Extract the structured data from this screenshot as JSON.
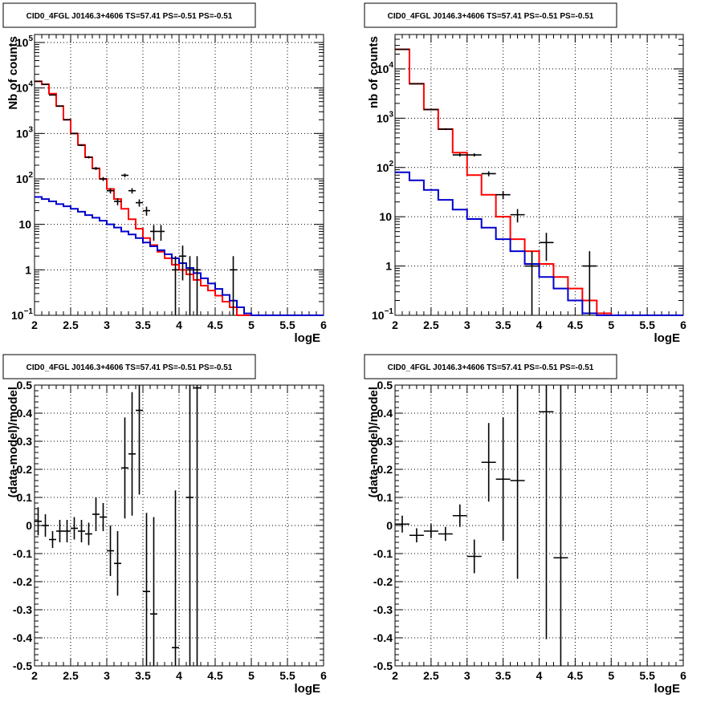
{
  "colors": {
    "data": "#000000",
    "model": "#ff0000",
    "background_model": "#0000cc"
  },
  "chart_data": [
    {
      "type": "line",
      "title": "CID0_4FGL J0146.3+4606 TS=57.41 PS=-0.51 PS=-0.51",
      "xlabel": "logE",
      "ylabel": "Nb of counts",
      "xlim": [
        2,
        6
      ],
      "ylim": [
        0.1,
        150000
      ],
      "yscale": "log",
      "grid": true,
      "x_ticks": [
        "2",
        "2.5",
        "3",
        "3.5",
        "4",
        "4.5",
        "5",
        "5.5",
        "6"
      ],
      "y_ticks": [
        {
          "v": 0.1,
          "label": "10",
          "sup": "−1"
        },
        {
          "v": 1,
          "label": "1"
        },
        {
          "v": 10,
          "label": "10"
        },
        {
          "v": 100,
          "label": "10",
          "sup": "2"
        },
        {
          "v": 1000,
          "label": "10",
          "sup": "3"
        },
        {
          "v": 10000,
          "label": "10",
          "sup": "4"
        },
        {
          "v": 100000,
          "label": "10",
          "sup": "5"
        }
      ],
      "bin_edges": [
        2.0,
        2.1,
        2.2,
        2.3,
        2.4,
        2.5,
        2.6,
        2.7,
        2.8,
        2.9,
        3.0,
        3.1,
        3.2,
        3.3,
        3.4,
        3.5,
        3.6,
        3.7,
        3.8,
        3.9,
        4.0,
        4.1,
        4.2,
        4.3,
        4.4,
        4.5,
        4.6,
        4.7,
        4.8,
        4.9,
        5.0,
        5.1,
        5.2,
        5.3,
        5.4,
        5.5,
        5.6,
        5.7,
        5.8,
        5.9,
        6.0
      ],
      "series": [
        {
          "role": "model",
          "values": [
            14000,
            12000,
            7500,
            4000,
            2000,
            1000,
            560,
            300,
            170,
            100,
            60,
            36,
            22,
            13,
            8,
            5,
            3.5,
            2.5,
            1.8,
            1.3,
            1.0,
            0.8,
            0.6,
            0.45,
            0.35,
            0.27,
            0.2,
            0.15,
            0.1,
            0.1,
            0.1,
            0.1,
            0.1,
            0.1,
            0.1,
            0.1,
            0.1,
            0.1,
            0.1,
            0.1
          ]
        },
        {
          "role": "background_model",
          "values": [
            40,
            36,
            32,
            28,
            25,
            22,
            19,
            16,
            14,
            12,
            10,
            8.5,
            7,
            6,
            5,
            4,
            3.3,
            2.7,
            2.2,
            1.8,
            1.4,
            1.1,
            0.85,
            0.65,
            0.5,
            0.38,
            0.28,
            0.21,
            0.15,
            0.11,
            0.1,
            0.1,
            0.1,
            0.1,
            0.1,
            0.1,
            0.1,
            0.1,
            0.1,
            0.1
          ]
        },
        {
          "role": "data",
          "points": [
            {
              "x": 2.05,
              "y": 14000
            },
            {
              "x": 2.15,
              "y": 12000
            },
            {
              "x": 2.25,
              "y": 7000
            },
            {
              "x": 2.35,
              "y": 4000
            },
            {
              "x": 2.45,
              "y": 2000
            },
            {
              "x": 2.55,
              "y": 1000
            },
            {
              "x": 2.65,
              "y": 550
            },
            {
              "x": 2.75,
              "y": 300
            },
            {
              "x": 2.85,
              "y": 170
            },
            {
              "x": 2.95,
              "y": 100
            },
            {
              "x": 3.05,
              "y": 55
            },
            {
              "x": 3.15,
              "y": 32
            },
            {
              "x": 3.25,
              "y": 120
            },
            {
              "x": 3.35,
              "y": 55
            },
            {
              "x": 3.45,
              "y": 30
            },
            {
              "x": 3.55,
              "y": 20
            },
            {
              "x": 3.65,
              "y": 7
            },
            {
              "x": 3.75,
              "y": 7
            },
            {
              "x": 3.95,
              "y": 1
            },
            {
              "x": 4.05,
              "y": 2
            },
            {
              "x": 4.15,
              "y": 1
            },
            {
              "x": 4.25,
              "y": 1
            },
            {
              "x": 4.75,
              "y": 1
            }
          ]
        }
      ]
    },
    {
      "type": "line",
      "title": "CID0_4FGL J0146.3+4606 TS=57.41 PS=-0.51 PS=-0.51",
      "xlabel": "logE",
      "ylabel": "nb of counts",
      "xlim": [
        2,
        6
      ],
      "ylim": [
        0.1,
        50000
      ],
      "yscale": "log",
      "grid": true,
      "x_ticks": [
        "2",
        "2.5",
        "3",
        "3.5",
        "4",
        "4.5",
        "5",
        "5.5",
        "6"
      ],
      "y_ticks": [
        {
          "v": 0.1,
          "label": "10",
          "sup": "−1"
        },
        {
          "v": 1,
          "label": "1"
        },
        {
          "v": 10,
          "label": "10"
        },
        {
          "v": 100,
          "label": "10",
          "sup": "2"
        },
        {
          "v": 1000,
          "label": "10",
          "sup": "3"
        },
        {
          "v": 10000,
          "label": "10",
          "sup": "4"
        }
      ],
      "bin_edges": [
        2.0,
        2.2,
        2.4,
        2.6,
        2.8,
        3.0,
        3.2,
        3.4,
        3.6,
        3.8,
        4.0,
        4.2,
        4.4,
        4.6,
        4.8,
        5.0,
        5.2,
        5.4,
        5.6,
        5.8,
        6.0
      ],
      "series": [
        {
          "role": "model",
          "values": [
            25000,
            5000,
            1500,
            600,
            200,
            70,
            28,
            10,
            3.5,
            2.0,
            1.1,
            0.6,
            0.35,
            0.2,
            0.11,
            0.1,
            0.1,
            0.1,
            0.1,
            0.1
          ]
        },
        {
          "role": "background_model",
          "values": [
            80,
            55,
            35,
            22,
            14,
            9,
            6,
            3.5,
            2.0,
            1.1,
            0.6,
            0.35,
            0.2,
            0.11,
            0.1,
            0.1,
            0.1,
            0.1,
            0.1,
            0.1
          ]
        },
        {
          "role": "data",
          "points": [
            {
              "x": 2.1,
              "y": 25000
            },
            {
              "x": 2.3,
              "y": 5000
            },
            {
              "x": 2.5,
              "y": 1500
            },
            {
              "x": 2.7,
              "y": 600
            },
            {
              "x": 2.9,
              "y": 180
            },
            {
              "x": 3.1,
              "y": 180
            },
            {
              "x": 3.3,
              "y": 75
            },
            {
              "x": 3.5,
              "y": 28
            },
            {
              "x": 3.7,
              "y": 11
            },
            {
              "x": 3.9,
              "y": 1
            },
            {
              "x": 4.1,
              "y": 3
            },
            {
              "x": 4.7,
              "y": 1
            }
          ]
        }
      ]
    },
    {
      "type": "scatter",
      "title": "CID0_4FGL J0146.3+4606 TS=57.41 PS=-0.51 PS=-0.51",
      "xlabel": "logE",
      "ylabel": "(data-model)/model",
      "xlim": [
        2,
        6
      ],
      "ylim": [
        -0.5,
        0.5
      ],
      "grid": true,
      "x_ticks": [
        "2",
        "2.5",
        "3",
        "3.5",
        "4",
        "4.5",
        "5",
        "5.5",
        "6"
      ],
      "y_ticks": [
        "-0.5",
        "-0.4",
        "-0.3",
        "-0.2",
        "-0.1",
        "0",
        "0.1",
        "0.2",
        "0.3",
        "0.4",
        "0.5"
      ],
      "x_halfwidth": 0.05,
      "points": [
        {
          "x": 2.05,
          "y": 0.015,
          "err": 0.05
        },
        {
          "x": 2.15,
          "y": 0.0,
          "err": 0.04
        },
        {
          "x": 2.25,
          "y": -0.05,
          "err": 0.03
        },
        {
          "x": 2.35,
          "y": -0.02,
          "err": 0.04
        },
        {
          "x": 2.45,
          "y": -0.02,
          "err": 0.04
        },
        {
          "x": 2.55,
          "y": -0.01,
          "err": 0.04
        },
        {
          "x": 2.65,
          "y": -0.02,
          "err": 0.04
        },
        {
          "x": 2.75,
          "y": -0.03,
          "err": 0.04
        },
        {
          "x": 2.85,
          "y": 0.04,
          "err": 0.06
        },
        {
          "x": 2.95,
          "y": 0.03,
          "err": 0.05
        },
        {
          "x": 3.05,
          "y": -0.09,
          "err": 0.09
        },
        {
          "x": 3.15,
          "y": -0.135,
          "err": 0.115
        },
        {
          "x": 3.25,
          "y": 0.205,
          "err": 0.18
        },
        {
          "x": 3.35,
          "y": 0.255,
          "err": 0.22
        },
        {
          "x": 3.45,
          "y": 0.41,
          "err": 0.3
        },
        {
          "x": 3.55,
          "y": -0.235,
          "err": 0.28
        },
        {
          "x": 3.65,
          "y": -0.315,
          "err": 0.345
        },
        {
          "x": 3.95,
          "y": -0.435,
          "err": 0.56
        },
        {
          "x": 4.15,
          "y": 0.1,
          "err": 0.95
        },
        {
          "x": 4.25,
          "y": 0.49,
          "err": 1.0
        }
      ]
    },
    {
      "type": "scatter",
      "title": "CID0_4FGL J0146.3+4606 TS=57.41 PS=-0.51 PS=-0.51",
      "xlabel": "logE",
      "ylabel": "(data-model)/model",
      "xlim": [
        2,
        6
      ],
      "ylim": [
        -0.5,
        0.5
      ],
      "grid": true,
      "x_ticks": [
        "2",
        "2.5",
        "3",
        "3.5",
        "4",
        "4.5",
        "5",
        "5.5",
        "6"
      ],
      "y_ticks": [
        "-0.5",
        "-0.4",
        "-0.3",
        "-0.2",
        "-0.1",
        "0",
        "0.1",
        "0.2",
        "0.3",
        "0.4",
        "0.5"
      ],
      "x_halfwidth": 0.1,
      "points": [
        {
          "x": 2.1,
          "y": 0.005,
          "err": 0.03
        },
        {
          "x": 2.3,
          "y": -0.035,
          "err": 0.025
        },
        {
          "x": 2.5,
          "y": -0.02,
          "err": 0.025
        },
        {
          "x": 2.7,
          "y": -0.03,
          "err": 0.025
        },
        {
          "x": 2.9,
          "y": 0.035,
          "err": 0.04
        },
        {
          "x": 3.1,
          "y": -0.11,
          "err": 0.06
        },
        {
          "x": 3.3,
          "y": 0.225,
          "err": 0.14
        },
        {
          "x": 3.5,
          "y": 0.165,
          "err": 0.22
        },
        {
          "x": 3.7,
          "y": 0.16,
          "err": 0.35
        },
        {
          "x": 4.1,
          "y": 0.405,
          "err": 0.81
        },
        {
          "x": 4.3,
          "y": -0.115,
          "err": 0.9
        }
      ]
    }
  ]
}
